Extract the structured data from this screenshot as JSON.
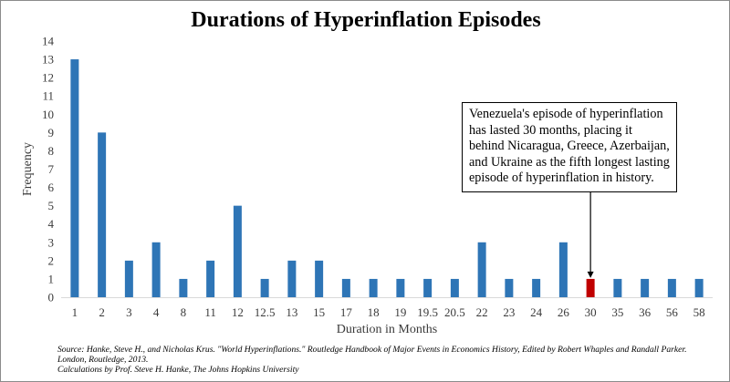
{
  "chart_data": {
    "type": "bar",
    "title": "Durations of Hyperinflation Episodes",
    "xlabel": "Duration in Months",
    "ylabel": "Frequency",
    "ylim": [
      0,
      14
    ],
    "yticks": [
      0,
      1,
      2,
      3,
      4,
      5,
      6,
      7,
      8,
      9,
      10,
      11,
      12,
      13,
      14
    ],
    "grid": false,
    "legend": "none",
    "categories": [
      "1",
      "2",
      "3",
      "4",
      "8",
      "11",
      "12",
      "12.5",
      "13",
      "15",
      "17",
      "18",
      "19",
      "19.5",
      "20.5",
      "22",
      "23",
      "24",
      "26",
      "30",
      "35",
      "36",
      "56",
      "58"
    ],
    "values": [
      13,
      9,
      2,
      3,
      1,
      2,
      5,
      1,
      2,
      2,
      1,
      1,
      1,
      1,
      1,
      3,
      1,
      1,
      3,
      1,
      1,
      1,
      1,
      1
    ],
    "highlight_category": "30",
    "colors": {
      "bar": "#2e75b6",
      "highlight": "#c00000",
      "axis": "#d9d9d9",
      "annotation_arrow": "#000000"
    },
    "annotation": "Venezuela's episode of hyperinflation has lasted 30 months, placing it behind Nicaragua, Greece, Azerbaijan, and Ukraine as the fifth longest lasting episode of hyperinflation in history."
  },
  "source": {
    "line1": "Source: Hanke, Steve H., and Nicholas Krus. \"World Hyperinflations.\" Routledge Handbook of Major Events in Economics History, Edited by Robert Whaples and Randall Parker. London, Routledge, 2013.",
    "line2": "Calculations by Prof. Steve H. Hanke, The Johns Hopkins University"
  }
}
